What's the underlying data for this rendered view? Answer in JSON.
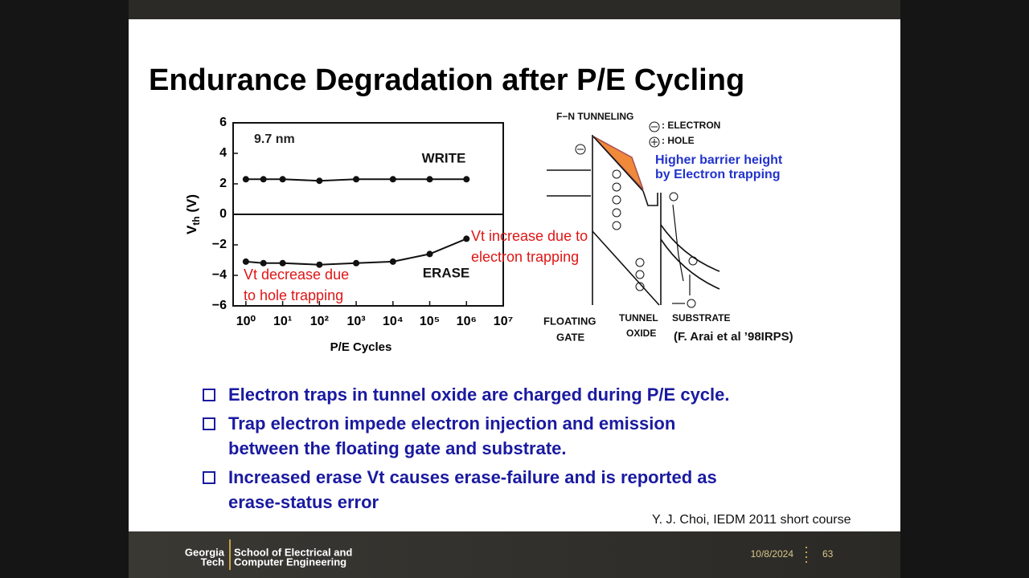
{
  "slide": {
    "title": "Endurance Degradation after P/E Cycling",
    "bullets": [
      {
        "lines": [
          "Electron traps in tunnel oxide are charged during P/E cycle."
        ]
      },
      {
        "lines": [
          "Trap electron impede electron injection and emission",
          "between the floating gate and substrate."
        ]
      },
      {
        "lines": [
          "Increased erase Vt causes erase-failure and is reported as",
          "erase-status error"
        ]
      }
    ],
    "credit": "Y. J. Choi, IEDM 2011 short course"
  },
  "chart_data": {
    "type": "line",
    "log_x": true,
    "ylabel": {
      "main": "V",
      "sub": "th",
      "rest": " (V)"
    },
    "xlabel": "P/E Cycles",
    "x": [
      1,
      3,
      10,
      100,
      1000,
      10000,
      100000,
      1000000
    ],
    "xlim": [
      0.45,
      10000000
    ],
    "xticks": [
      {
        "value": 1,
        "label": "10⁰"
      },
      {
        "value": 10,
        "label": "10¹"
      },
      {
        "value": 100,
        "label": "10²"
      },
      {
        "value": 1000,
        "label": "10³"
      },
      {
        "value": 10000,
        "label": "10⁴"
      },
      {
        "value": 100000,
        "label": "10⁵"
      },
      {
        "value": 1000000,
        "label": "10⁶"
      },
      {
        "value": 10000000,
        "label": "10⁷"
      }
    ],
    "ylim": [
      -6,
      6
    ],
    "yticks": [
      {
        "value": -6,
        "label": "−6"
      },
      {
        "value": -4,
        "label": "−4"
      },
      {
        "value": -2,
        "label": "−2"
      },
      0,
      2,
      4,
      6
    ],
    "series": [
      {
        "name": "WRITE",
        "color": "#111111",
        "values": [
          2.3,
          2.3,
          2.3,
          2.2,
          2.3,
          2.3,
          2.3,
          2.3
        ]
      },
      {
        "name": "ERASE",
        "color": "#111111",
        "values": [
          -3.1,
          -3.2,
          -3.2,
          -3.3,
          -3.2,
          -3.1,
          -2.6,
          -1.6
        ]
      }
    ],
    "annotations": [
      {
        "lines": [
          "9.7 nm"
        ],
        "color": "#222222"
      },
      {
        "lines": [
          "Vt increase due to",
          "electron trapping"
        ],
        "color": "#e01515"
      },
      {
        "lines": [
          "Vt decrease due",
          "to hole trapping"
        ],
        "color": "#e01515"
      }
    ]
  },
  "diagram": {
    "tunneling": "F−N TUNNELING",
    "electron": ": ELECTRON",
    "hole": ": HOLE",
    "barrier": [
      "Higher barrier height",
      "by Electron trapping"
    ],
    "floating_gate": [
      "FLOATING",
      "GATE"
    ],
    "tunnel_oxide": [
      "TUNNEL",
      "OXIDE"
    ],
    "substrate": "SUBSTRATE",
    "reference": "(F. Arai et al ’98IRPS)"
  },
  "footer": {
    "logo": [
      "Georgia",
      "Tech"
    ],
    "school": [
      "School of Electrical and",
      "Computer Engineering"
    ],
    "date": "10/8/2024",
    "page": "63"
  }
}
